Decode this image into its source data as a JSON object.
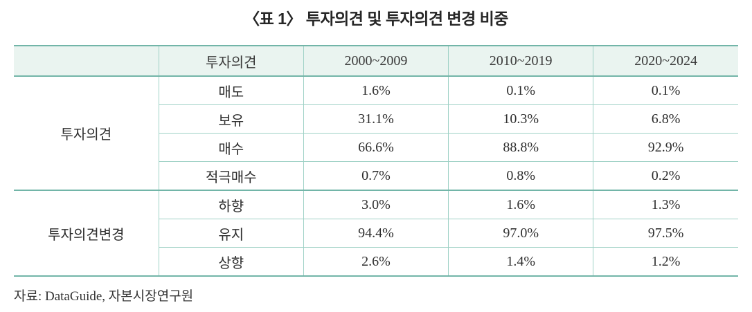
{
  "title": "〈표 1〉 투자의견 및 투자의견 변경 비중",
  "colors": {
    "border_accent_teal": "#72b5a8",
    "border_light_teal": "#9ed1c5",
    "header_background": "#eaf4f0",
    "text": "#2e2e2e"
  },
  "table": {
    "columns": [
      "",
      "투자의견",
      "2000~2009",
      "2010~2019",
      "2020~2024"
    ],
    "groups": [
      {
        "label": "투자의견",
        "rows": [
          {
            "label": "매도",
            "values": [
              "1.6%",
              "0.1%",
              "0.1%"
            ]
          },
          {
            "label": "보유",
            "values": [
              "31.1%",
              "10.3%",
              "6.8%"
            ]
          },
          {
            "label": "매수",
            "values": [
              "66.6%",
              "88.8%",
              "92.9%"
            ]
          },
          {
            "label": "적극매수",
            "values": [
              "0.7%",
              "0.8%",
              "0.2%"
            ]
          }
        ]
      },
      {
        "label": "투자의견변경",
        "rows": [
          {
            "label": "하향",
            "values": [
              "3.0%",
              "1.6%",
              "1.3%"
            ]
          },
          {
            "label": "유지",
            "values": [
              "94.4%",
              "97.0%",
              "97.5%"
            ]
          },
          {
            "label": "상향",
            "values": [
              "2.6%",
              "1.4%",
              "1.2%"
            ]
          }
        ]
      }
    ]
  },
  "source": "자료: DataGuide, 자본시장연구원"
}
